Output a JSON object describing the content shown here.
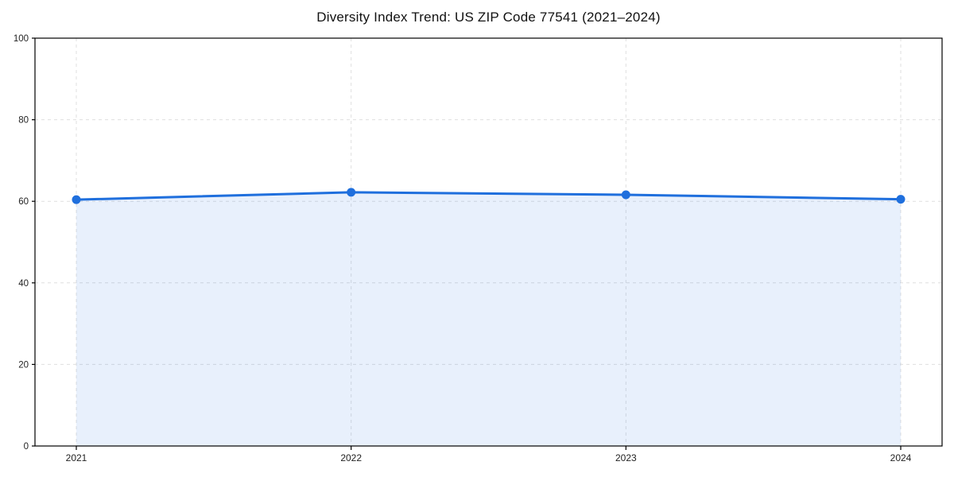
{
  "chart_data": {
    "type": "area",
    "title": "Diversity Index Trend: US ZIP Code 77541 (2021–2024)",
    "categories": [
      "2021",
      "2022",
      "2023",
      "2024"
    ],
    "series": [
      {
        "name": "Diversity Index",
        "values": [
          60.4,
          62.2,
          61.6,
          60.5
        ]
      }
    ],
    "xlabel": "",
    "ylabel": "",
    "ylim": [
      0,
      100
    ],
    "yticks": [
      0,
      20,
      40,
      60,
      80,
      100
    ],
    "yticklabels": [
      "0",
      "20",
      "40",
      "60",
      "80",
      "100"
    ],
    "grid": "dashed",
    "legend": false,
    "colors": {
      "line": "#1f6fdd",
      "marker": "#1f6fdd",
      "fill": "#1f6fdd",
      "fill_opacity": 0.1,
      "gridline": "#dfdfdf",
      "spine": "#000000",
      "tick_label": "#222222",
      "title": "#111111",
      "background": "#ffffff"
    }
  }
}
